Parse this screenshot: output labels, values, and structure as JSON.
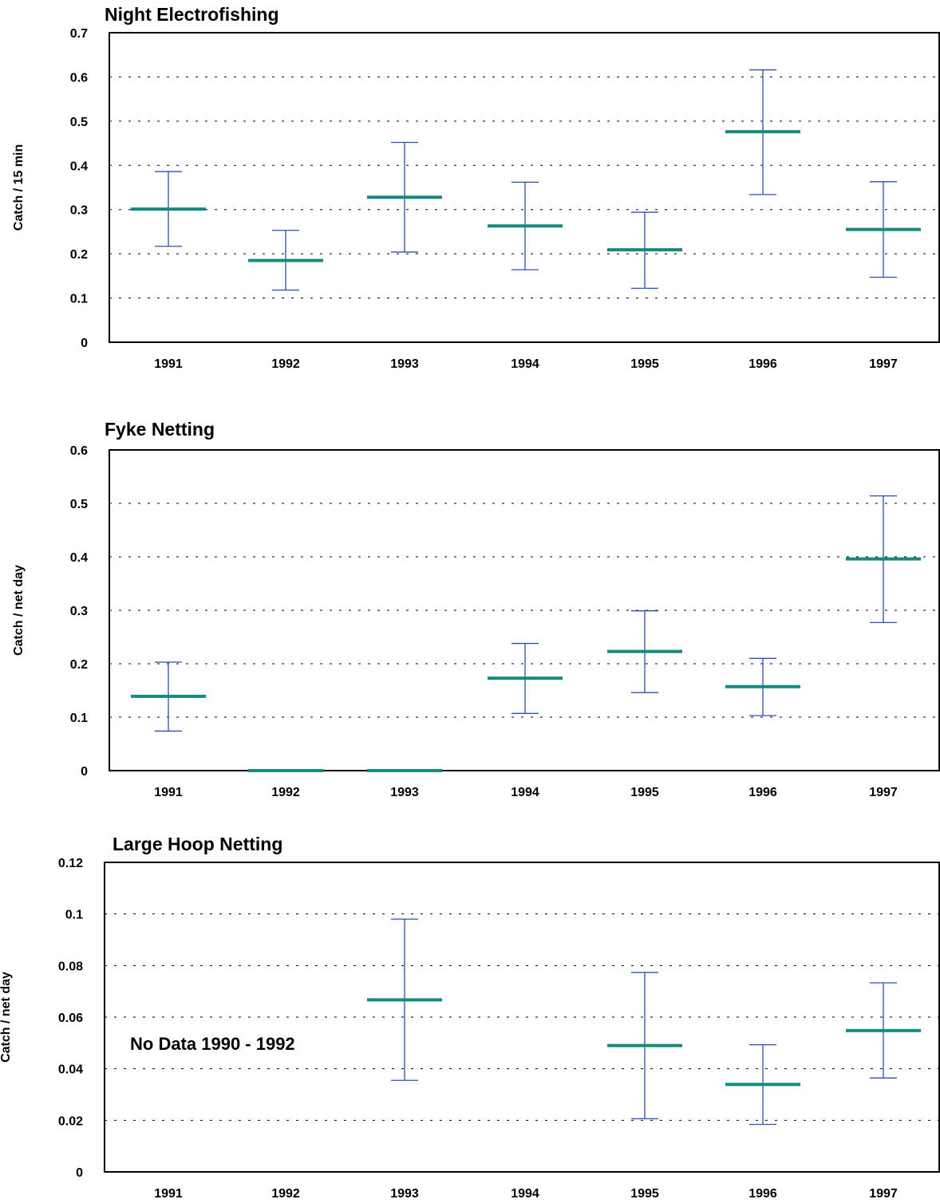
{
  "colors": {
    "mean": "#178a7e",
    "error_bar": "#2f4fb0",
    "frame": "#000000",
    "grid": "#000000"
  },
  "chart_data": [
    {
      "type": "errorbar",
      "title": "Night Electrofishing",
      "ylabel": "Catch / 15 min",
      "categories": [
        "1991",
        "1992",
        "1993",
        "1994",
        "1995",
        "1996",
        "1997"
      ],
      "ylim": [
        0,
        0.7
      ],
      "yticks": [
        0,
        0.1,
        0.2,
        0.3,
        0.4,
        0.5,
        0.6,
        0.7
      ],
      "ytick_labels": [
        "0",
        "0.1",
        "0.2",
        "0.3",
        "0.4",
        "0.5",
        "0.6",
        "0.7"
      ],
      "means": [
        0.301,
        0.185,
        0.328,
        0.263,
        0.209,
        0.476,
        0.255
      ],
      "lower": [
        0.217,
        0.118,
        0.204,
        0.164,
        0.122,
        0.334,
        0.147
      ],
      "upper": [
        0.386,
        0.253,
        0.452,
        0.362,
        0.294,
        0.616,
        0.363
      ],
      "grid": "horizontal dotted",
      "annotation": ""
    },
    {
      "type": "errorbar",
      "title": "Fyke Netting",
      "ylabel": "Catch / net day",
      "categories": [
        "1991",
        "1992",
        "1993",
        "1994",
        "1995",
        "1996",
        "1997"
      ],
      "ylim": [
        0,
        0.6
      ],
      "yticks": [
        0,
        0.1,
        0.2,
        0.3,
        0.4,
        0.5,
        0.6
      ],
      "ytick_labels": [
        "0",
        "0.1",
        "0.2",
        "0.3",
        "0.4",
        "0.5",
        "0.6"
      ],
      "means": [
        0.139,
        0.0,
        0.0,
        0.173,
        0.223,
        0.157,
        0.396
      ],
      "lower": [
        0.074,
        null,
        null,
        0.107,
        0.146,
        0.103,
        0.277
      ],
      "upper": [
        0.203,
        null,
        null,
        0.238,
        0.299,
        0.21,
        0.514
      ],
      "grid": "horizontal dotted",
      "annotation": ""
    },
    {
      "type": "errorbar",
      "title": "Large Hoop Netting",
      "ylabel": "Catch / net day",
      "categories": [
        "1991",
        "1992",
        "1993",
        "1994",
        "1995",
        "1996",
        "1997"
      ],
      "ylim": [
        0,
        0.12
      ],
      "yticks": [
        0,
        0.02,
        0.04,
        0.06,
        0.08,
        0.1,
        0.12
      ],
      "ytick_labels": [
        "0",
        "0.02",
        "0.04",
        "0.06",
        "0.08",
        "0.1",
        "0.12"
      ],
      "means": [
        null,
        null,
        0.0667,
        null,
        0.049,
        0.0339,
        0.0548
      ],
      "lower": [
        null,
        null,
        0.0355,
        null,
        0.0206,
        0.0184,
        0.0364
      ],
      "upper": [
        null,
        null,
        0.098,
        null,
        0.0773,
        0.0493,
        0.0733
      ],
      "grid": "horizontal dotted",
      "annotation": "No  Data 1990 - 1992"
    }
  ]
}
